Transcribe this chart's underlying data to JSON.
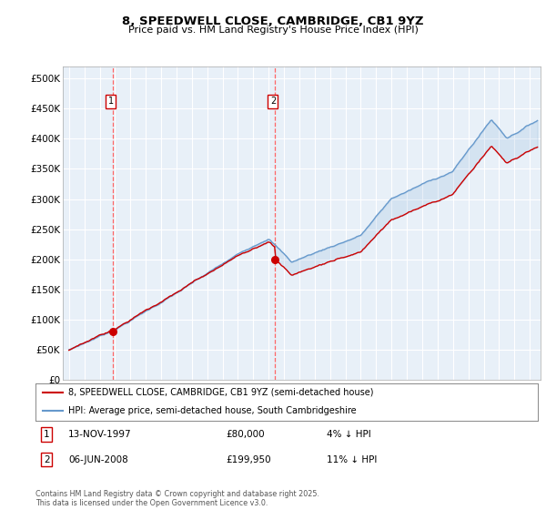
{
  "title_line1": "8, SPEEDWELL CLOSE, CAMBRIDGE, CB1 9YZ",
  "title_line2": "Price paid vs. HM Land Registry's House Price Index (HPI)",
  "ylim": [
    0,
    520000
  ],
  "yticks": [
    0,
    50000,
    100000,
    150000,
    200000,
    250000,
    300000,
    350000,
    400000,
    450000,
    500000
  ],
  "ytick_labels": [
    "£0",
    "£50K",
    "£100K",
    "£150K",
    "£200K",
    "£250K",
    "£300K",
    "£350K",
    "£400K",
    "£450K",
    "£500K"
  ],
  "purchase1_date": 1997.87,
  "purchase1_price": 80000,
  "purchase1_label": "1",
  "purchase2_date": 2008.43,
  "purchase2_price": 199950,
  "purchase2_label": "2",
  "legend_red": "8, SPEEDWELL CLOSE, CAMBRIDGE, CB1 9YZ (semi-detached house)",
  "legend_blue": "HPI: Average price, semi-detached house, South Cambridgeshire",
  "footnote": "Contains HM Land Registry data © Crown copyright and database right 2025.\nThis data is licensed under the Open Government Licence v3.0.",
  "red_color": "#cc0000",
  "blue_color": "#6699cc",
  "fill_color": "#ddeeff",
  "dashed_color": "#ff6666",
  "background_color": "#ffffff",
  "chart_bg_color": "#e8f0f8",
  "grid_color": "#ffffff",
  "box_edge_color": "#cc0000"
}
